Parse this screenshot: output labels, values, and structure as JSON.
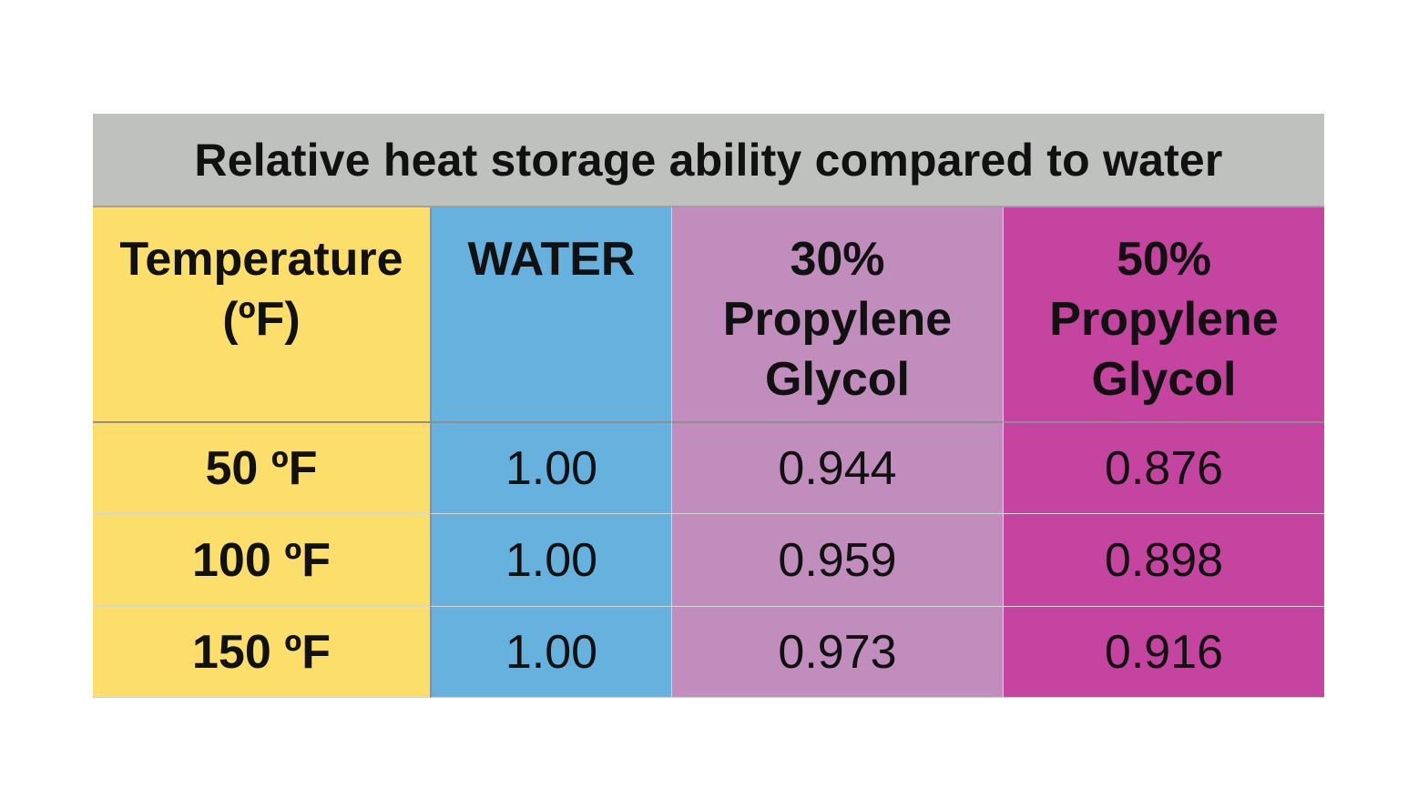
{
  "chart_data": {
    "type": "table",
    "title": "Relative heat storage ability compared to water",
    "columns": {
      "temperature": [
        "Temperature",
        "(ºF)"
      ],
      "water": [
        "WATER"
      ],
      "pg30": [
        "30%",
        "Propylene",
        "Glycol"
      ],
      "pg50": [
        "50%",
        "Propylene",
        "Glycol"
      ]
    },
    "rows": [
      {
        "temperature": "50 ºF",
        "water": "1.00",
        "pg30": "0.944",
        "pg50": "0.876"
      },
      {
        "temperature": "100 ºF",
        "water": "1.00",
        "pg30": "0.959",
        "pg50": "0.898"
      },
      {
        "temperature": "150 ºF",
        "water": "1.00",
        "pg30": "0.973",
        "pg50": "0.916"
      }
    ],
    "colors": {
      "title_bg": "#bfc1bf",
      "temperature": "#fcde6a",
      "water": "#66b1de",
      "pg30": "#c08dbd",
      "pg50": "#c4449f"
    }
  }
}
